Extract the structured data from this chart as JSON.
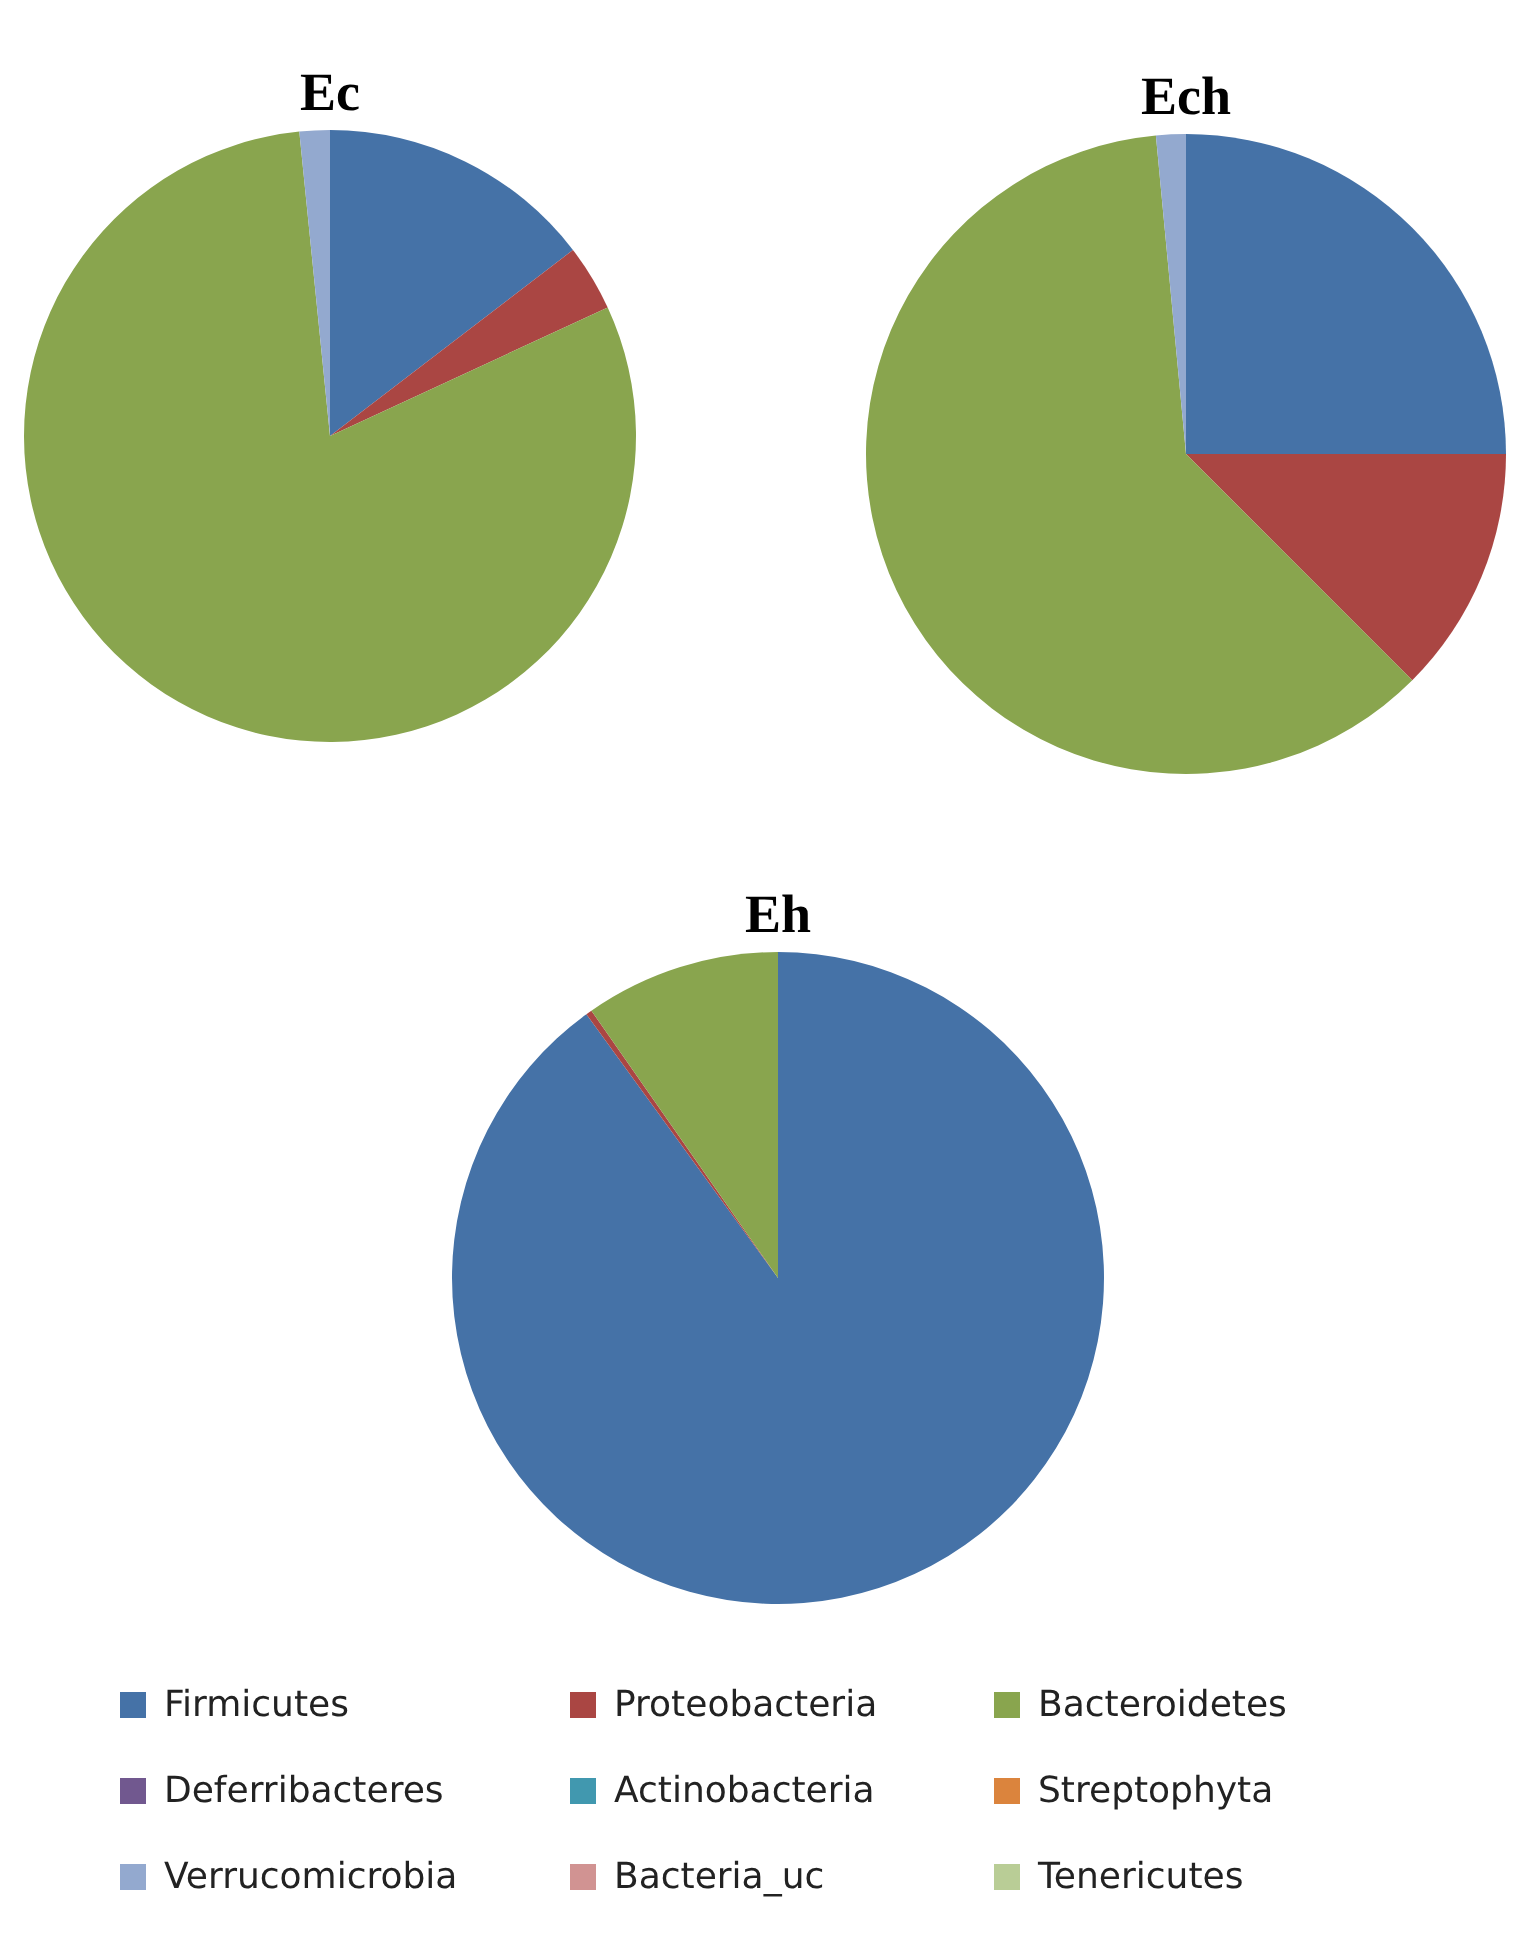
{
  "chart_data": {
    "type": "pie",
    "categories": [
      "Firmicutes",
      "Proteobacteria",
      "Bacteroidetes",
      "Deferribacteres",
      "Actinobacteria",
      "Streptophyta",
      "Verrucomicrobia",
      "Bacteria_uc",
      "Tenericutes"
    ],
    "colors": [
      "#4572a7",
      "#aa4643",
      "#89a54e",
      "#71588f",
      "#4198af",
      "#db843d",
      "#93a9cf",
      "#d19392",
      "#b9cd96"
    ],
    "legend": "bottom",
    "series": [
      {
        "name": "Ec",
        "values": [
          14.6,
          3.5,
          80.3,
          0,
          0,
          0,
          1.6,
          0,
          0
        ]
      },
      {
        "name": "Ech",
        "values": [
          25,
          12.5,
          61,
          0,
          0,
          0,
          1.5,
          0,
          0
        ]
      },
      {
        "name": "Eh",
        "values": [
          90,
          0.3,
          9.7,
          0,
          0,
          0,
          0,
          0,
          0
        ]
      }
    ]
  }
}
